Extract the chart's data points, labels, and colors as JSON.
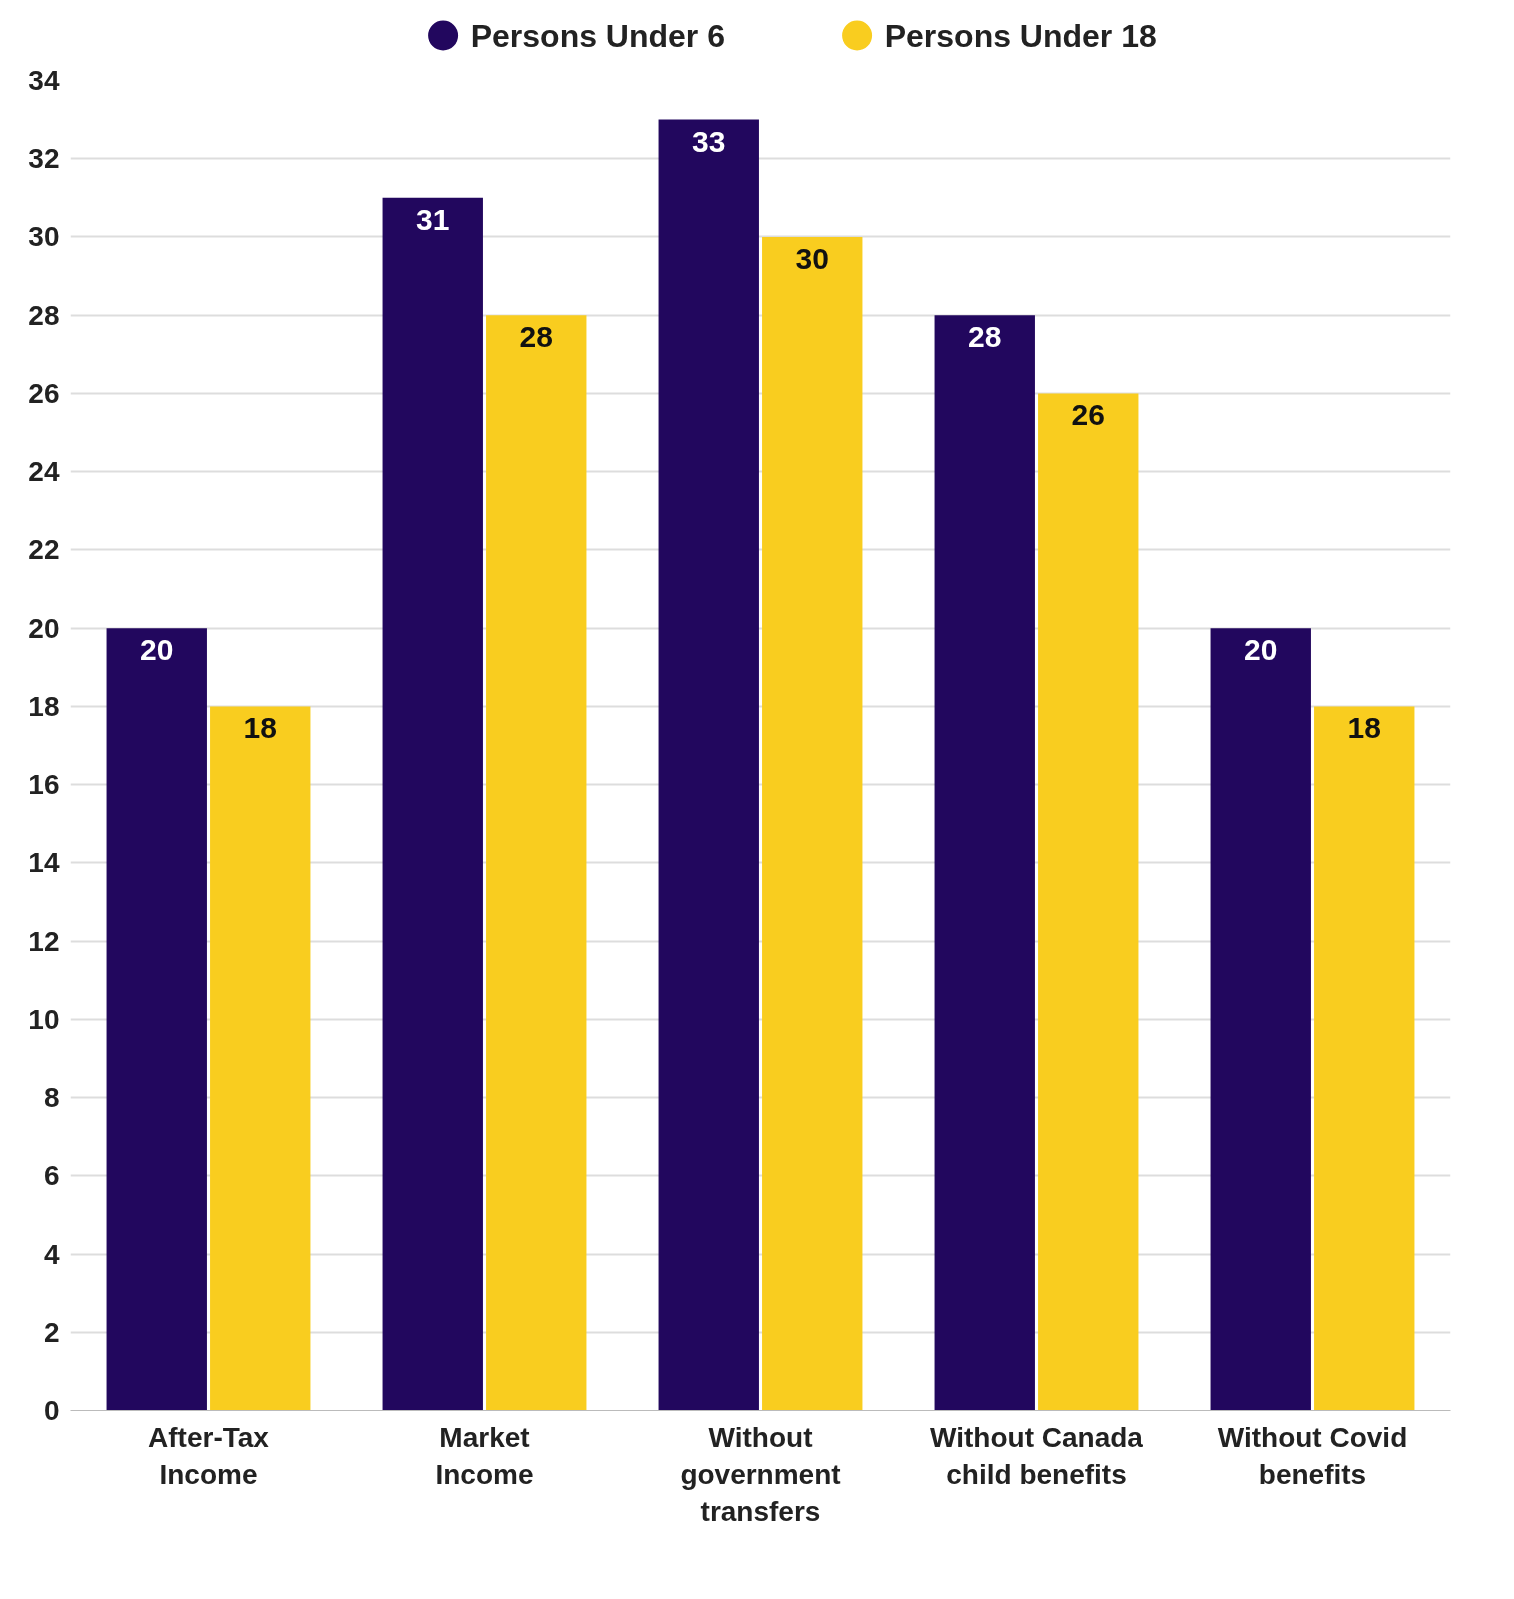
{
  "chart_data": {
    "type": "bar",
    "categories": [
      "After-Tax\nIncome",
      "Market\nIncome",
      "Without\ngovernment\ntransfers",
      "Without Canada\nchild benefits",
      "Without Covid\nbenefits"
    ],
    "series": [
      {
        "name": "Persons Under 6",
        "color": "#22075e",
        "values": [
          20,
          31,
          33,
          28,
          20
        ]
      },
      {
        "name": "Persons Under 18",
        "color": "#f9cd1f",
        "values": [
          18,
          28,
          30,
          26,
          18
        ]
      }
    ],
    "ylim": [
      0,
      34
    ],
    "yticks": [
      0,
      2,
      4,
      6,
      8,
      10,
      12,
      14,
      16,
      18,
      20,
      22,
      24,
      26,
      28,
      30,
      32,
      34
    ],
    "grid": "y",
    "legend": "top",
    "data_labels": true,
    "marker": "circle"
  }
}
